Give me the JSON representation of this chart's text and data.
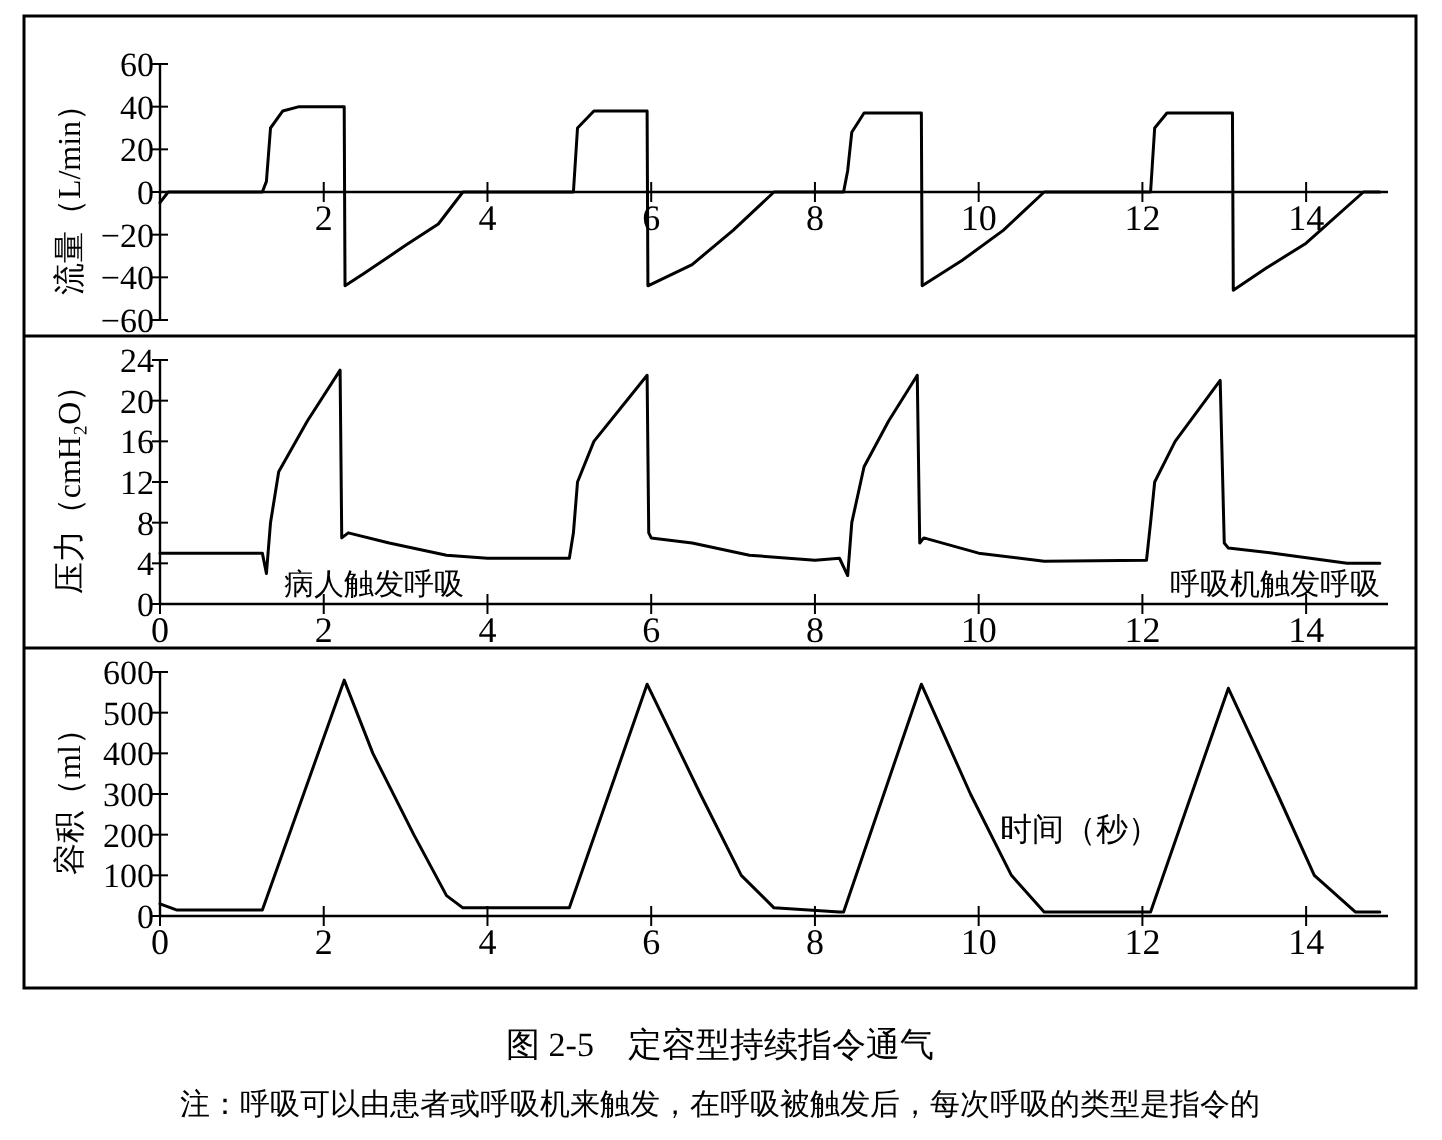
{
  "chart_data": [
    {
      "type": "line",
      "ylabel": "流量（L/min）",
      "xlim": [
        0,
        15
      ],
      "xticks": [
        2,
        4,
        6,
        8,
        10,
        12,
        14
      ],
      "ylim": [
        -60,
        60
      ],
      "yticks": [
        -60,
        -40,
        -20,
        0,
        20,
        40,
        60
      ],
      "series": [
        {
          "color": "#000000",
          "x": [
            0,
            0.1,
            1.25,
            1.3,
            1.35,
            1.5,
            1.7,
            2.25,
            2.26,
            2.5,
            3.0,
            3.4,
            3.7,
            5.05,
            5.1,
            5.3,
            5.95,
            5.96,
            6.5,
            7.0,
            7.5,
            8.35,
            8.4,
            8.45,
            8.6,
            9.3,
            9.31,
            9.8,
            10.3,
            10.8,
            12.1,
            12.15,
            12.3,
            13.1,
            13.11,
            13.5,
            14.0,
            14.7,
            14.9
          ],
          "values": [
            -5,
            0,
            0,
            5,
            30,
            38,
            40,
            40,
            -44,
            -38,
            -25,
            -15,
            0,
            0,
            30,
            38,
            38,
            -44,
            -34,
            -18,
            0,
            0,
            10,
            28,
            37,
            37,
            -44,
            -32,
            -18,
            0,
            0,
            30,
            37,
            37,
            -46,
            -36,
            -24,
            0,
            0
          ]
        }
      ]
    },
    {
      "type": "line",
      "ylabel": "压力（cmH₂O）",
      "xlim": [
        0,
        15
      ],
      "xticks": [
        0,
        2,
        4,
        6,
        8,
        10,
        12,
        14
      ],
      "ylim": [
        0,
        24
      ],
      "yticks": [
        0,
        4,
        8,
        12,
        16,
        20,
        24
      ],
      "annotations": [
        "病人触发呼吸",
        "呼吸机触发呼吸"
      ],
      "series": [
        {
          "color": "#000000",
          "x": [
            0,
            1.25,
            1.3,
            1.35,
            1.45,
            1.8,
            2.2,
            2.22,
            2.3,
            2.8,
            3.5,
            4.0,
            5.0,
            5.05,
            5.1,
            5.3,
            5.95,
            5.97,
            6.0,
            6.5,
            7.2,
            8.0,
            8.3,
            8.4,
            8.45,
            8.6,
            8.9,
            9.25,
            9.28,
            9.33,
            10.0,
            10.8,
            12.05,
            12.1,
            12.15,
            12.4,
            12.95,
            13.0,
            13.05,
            13.6,
            14.5,
            14.9
          ],
          "values": [
            5,
            5,
            3,
            8,
            13,
            18,
            23,
            6.5,
            7,
            6,
            4.8,
            4.5,
            4.5,
            7,
            12,
            16,
            22.5,
            7,
            6.5,
            6,
            4.8,
            4.3,
            4.5,
            2.8,
            8,
            13.5,
            18,
            22.5,
            6,
            6.5,
            5,
            4.2,
            4.3,
            8,
            12,
            16,
            22,
            6,
            5.5,
            5,
            4,
            4
          ]
        }
      ]
    },
    {
      "type": "line",
      "ylabel": "容积（ml）",
      "xlim": [
        0,
        15
      ],
      "xticks": [
        0,
        2,
        4,
        6,
        8,
        10,
        12,
        14
      ],
      "ylim": [
        0,
        600
      ],
      "yticks": [
        0,
        100,
        200,
        300,
        400,
        500,
        600
      ],
      "annotations": [
        "时间（秒）",
        "图 2-5　定容型持续指令通气",
        "注：呼吸可以由患者或呼吸机来触发，在呼吸被触发后，每次呼吸的类型是指令的"
      ],
      "series": [
        {
          "color": "#000000",
          "x": [
            0,
            0.2,
            1.25,
            2.25,
            2.6,
            3.1,
            3.5,
            3.7,
            5.0,
            5.95,
            6.6,
            7.1,
            7.5,
            8.3,
            8.35,
            9.3,
            9.9,
            10.4,
            10.8,
            12.1,
            13.05,
            13.65,
            14.1,
            14.6,
            14.9
          ],
          "values": [
            30,
            15,
            15,
            580,
            400,
            200,
            50,
            20,
            20,
            570,
            300,
            100,
            20,
            10,
            10,
            570,
            300,
            100,
            10,
            10,
            560,
            300,
            100,
            10,
            10
          ]
        }
      ]
    }
  ]
}
